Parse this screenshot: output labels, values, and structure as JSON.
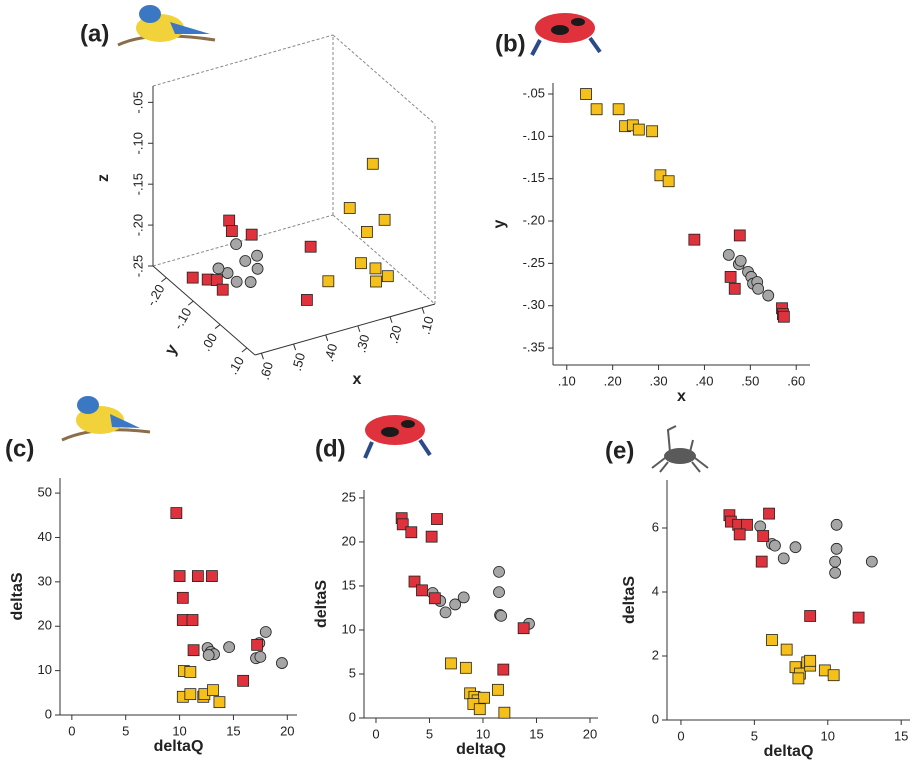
{
  "chart_data": [
    {
      "type": "scatter3d",
      "title": "(a)",
      "xlabel": "x",
      "ylabel": "y",
      "zlabel": "z",
      "xlim": [
        0.06,
        0.62
      ],
      "ylim": [
        -0.25,
        0.13
      ],
      "zlim": [
        -0.25,
        -0.03
      ],
      "xticks": [
        {
          "value": 0.6,
          "label": ".60"
        },
        {
          "value": 0.5,
          "label": ".50"
        },
        {
          "value": 0.4,
          "label": ".40"
        },
        {
          "value": 0.3,
          "label": ".30"
        },
        {
          "value": 0.2,
          "label": ".20"
        },
        {
          "value": 0.1,
          "label": ".10"
        }
      ],
      "yticks": [
        {
          "value": -0.2,
          "label": "-.20"
        },
        {
          "value": -0.1,
          "label": "-.10"
        },
        {
          "value": 0,
          "label": ".00"
        },
        {
          "value": 0.1,
          "label": ".10"
        }
      ],
      "zticks": [
        {
          "value": -0.05,
          "label": "-.05"
        },
        {
          "value": -0.1,
          "label": "-.10"
        },
        {
          "value": -0.15,
          "label": "-.15"
        },
        {
          "value": -0.2,
          "label": "-.20"
        },
        {
          "value": -0.25,
          "label": "-.25"
        }
      ],
      "series": [
        {
          "color": "#a6a6a6",
          "marker": "circle",
          "x": [
            0.5,
            0.48,
            0.52,
            0.53,
            0.5,
            0.51,
            0.47,
            0.55
          ],
          "y": [
            -0.05,
            -0.03,
            -0.06,
            -0.08,
            -0.03,
            -0.07,
            -0.04,
            -0.09
          ],
          "z": [
            -0.2,
            -0.19,
            -0.18,
            -0.22,
            -0.22,
            -0.23,
            -0.21,
            -0.215
          ]
        },
        {
          "color": "#e0323c",
          "marker": "square",
          "x": [
            0.55,
            0.55,
            0.48,
            0.55,
            0.53,
            0.52,
            0.58,
            0.35,
            0.33
          ],
          "y": [
            -0.05,
            -0.04,
            -0.05,
            -0.13,
            -0.12,
            -0.11,
            -0.15,
            0,
            -0.01
          ],
          "z": [
            -0.145,
            -0.155,
            -0.17,
            -0.24,
            -0.24,
            -0.25,
            -0.24,
            -0.25,
            -0.19
          ]
        },
        {
          "color": "#f5c01a",
          "marker": "square",
          "x": [
            0.17,
            0.2,
            0.15,
            0.18,
            0.17,
            0.19,
            0.14,
            0.16,
            0.3
          ],
          "y": [
            0.03,
            -0.02,
            0.05,
            0.02,
            0.04,
            0.01,
            0.05,
            0.03,
            0.02
          ],
          "z": [
            -0.095,
            -0.16,
            -0.16,
            -0.18,
            -0.22,
            -0.22,
            -0.23,
            -0.24,
            -0.227
          ]
        }
      ]
    },
    {
      "type": "scatter",
      "title": "(b)",
      "xlabel": "x",
      "ylabel": "y",
      "xlim": [
        0.07,
        0.63
      ],
      "ylim": [
        -0.37,
        -0.037
      ],
      "xticks": [
        {
          "value": 0.1,
          "label": ".10"
        },
        {
          "value": 0.2,
          "label": ".20"
        },
        {
          "value": 0.3,
          "label": ".30"
        },
        {
          "value": 0.4,
          "label": ".40"
        },
        {
          "value": 0.5,
          "label": ".50"
        },
        {
          "value": 0.6,
          "label": ".60"
        }
      ],
      "yticks": [
        {
          "value": -0.05,
          "label": "-.05"
        },
        {
          "value": -0.1,
          "label": "-.10"
        },
        {
          "value": -0.15,
          "label": "-.15"
        },
        {
          "value": -0.2,
          "label": "-.20"
        },
        {
          "value": -0.25,
          "label": "-.25"
        },
        {
          "value": -0.3,
          "label": "-.30"
        },
        {
          "value": -0.35,
          "label": "-.35"
        }
      ],
      "series": [
        {
          "color": "#f5c01a",
          "marker": "square",
          "x": [
            0.142,
            0.165,
            0.213,
            0.227,
            0.244,
            0.257,
            0.286,
            0.304,
            0.322
          ],
          "values": [
            -0.05,
            -0.068,
            -0.068,
            -0.088,
            -0.087,
            -0.092,
            -0.094,
            -0.146,
            -0.153
          ]
        },
        {
          "color": "#a6a6a6",
          "marker": "circle",
          "x": [
            0.453,
            0.475,
            0.479,
            0.495,
            0.502,
            0.506,
            0.515,
            0.517,
            0.539
          ],
          "values": [
            -0.24,
            -0.251,
            -0.247,
            -0.26,
            -0.266,
            -0.274,
            -0.272,
            -0.28,
            -0.288
          ]
        },
        {
          "color": "#e0323c",
          "marker": "square",
          "x": [
            0.378,
            0.477,
            0.457,
            0.466,
            0.569,
            0.571,
            0.573
          ],
          "values": [
            -0.222,
            -0.217,
            -0.266,
            -0.28,
            -0.303,
            -0.31,
            -0.313
          ]
        }
      ]
    },
    {
      "type": "scatter",
      "title": "(c)",
      "xlabel": "deltaQ",
      "ylabel": "deltaS",
      "xlim": [
        -1.1,
        20.9
      ],
      "ylim": [
        0,
        53.4
      ],
      "xticks": [
        0,
        5,
        10,
        15,
        20
      ],
      "yticks": [
        0,
        10,
        20,
        30,
        40,
        50
      ],
      "series": [
        {
          "color": "#a6a6a6",
          "marker": "circle",
          "x": [
            12.6,
            12.9,
            13.2,
            12.7,
            14.6,
            17.1,
            17.4,
            18.0,
            19.5,
            17.5
          ],
          "values": [
            15.1,
            14.2,
            13.7,
            13.5,
            15.3,
            12.8,
            16.2,
            18.7,
            11.7,
            13.1
          ]
        },
        {
          "color": "#e0323c",
          "marker": "square",
          "x": [
            9.7,
            10,
            10.3,
            10.3,
            11.2,
            11.3,
            11.7,
            13,
            15.9,
            17.2
          ],
          "values": [
            45.5,
            31.3,
            26.4,
            21.4,
            21.4,
            14.6,
            31.3,
            31.3,
            7.7,
            15.8
          ]
        },
        {
          "color": "#f5c01a",
          "marker": "square",
          "x": [
            10.4,
            11,
            10.3,
            11,
            12.2,
            12.3,
            13.1,
            13.7
          ],
          "values": [
            9.9,
            9.7,
            4.1,
            4.7,
            4.1,
            4.7,
            5.6,
            2.9
          ]
        }
      ]
    },
    {
      "type": "scatter",
      "title": "(d)",
      "xlabel": "deltaQ",
      "ylabel": "deltaS",
      "xlim": [
        -1.12,
        20.75
      ],
      "ylim": [
        0,
        25.9
      ],
      "xticks": [
        0,
        5,
        10,
        15,
        20
      ],
      "yticks": [
        0,
        5,
        10,
        15,
        20,
        25
      ],
      "series": [
        {
          "color": "#a6a6a6",
          "marker": "circle",
          "x": [
            5.3,
            6,
            6.5,
            7.4,
            8.2,
            11.5,
            11.5,
            11.6,
            11.7,
            14.3
          ],
          "values": [
            14.2,
            13.3,
            12,
            12.9,
            13.7,
            16.6,
            14.3,
            11.7,
            11.6,
            10.7
          ]
        },
        {
          "color": "#e0323c",
          "marker": "square",
          "x": [
            2.4,
            2.5,
            3.3,
            5.7,
            5.2,
            3.6,
            4.3,
            5.5,
            13.8,
            11.9
          ],
          "values": [
            22.7,
            22,
            21.1,
            22.6,
            20.6,
            15.5,
            14.5,
            13.6,
            10.2,
            5.5
          ]
        },
        {
          "color": "#f5c01a",
          "marker": "square",
          "x": [
            7,
            8.4,
            8.8,
            9.2,
            9.5,
            10.1,
            9.1,
            9.7,
            11.4,
            12
          ],
          "values": [
            6.2,
            5.7,
            2.8,
            2.4,
            2,
            2.3,
            1.6,
            1,
            3.2,
            0.6
          ]
        }
      ]
    },
    {
      "type": "scatter",
      "title": "(e)",
      "xlabel": "deltaQ",
      "ylabel": "deltaS",
      "xlim": [
        -0.95,
        15.6
      ],
      "ylim": [
        0,
        7.5
      ],
      "xticks": [
        0,
        5,
        10,
        15
      ],
      "yticks": [
        0,
        2,
        4,
        6
      ],
      "series": [
        {
          "color": "#a6a6a6",
          "marker": "circle",
          "x": [
            5.4,
            6.2,
            6.4,
            7,
            7.8,
            10.6,
            10.6,
            10.5,
            10.5,
            13
          ],
          "values": [
            6.05,
            5.5,
            5.45,
            5.05,
            5.4,
            6.1,
            5.35,
            4.95,
            4.6,
            4.95
          ]
        },
        {
          "color": "#e0323c",
          "marker": "square",
          "x": [
            3.3,
            3.4,
            3.9,
            4.5,
            4,
            5.6,
            6,
            5.5,
            8.8,
            12.1
          ],
          "values": [
            6.4,
            6.2,
            6.1,
            6.1,
            5.8,
            5.75,
            6.45,
            4.95,
            3.25,
            3.2
          ]
        },
        {
          "color": "#f5c01a",
          "marker": "square",
          "x": [
            6.2,
            7.2,
            7.8,
            8.1,
            8,
            8.6,
            8.8,
            8.8,
            9.8,
            10.4
          ],
          "values": [
            2.5,
            2.2,
            1.65,
            1.45,
            1.3,
            1.8,
            1.7,
            1.85,
            1.55,
            1.4
          ]
        }
      ]
    }
  ]
}
